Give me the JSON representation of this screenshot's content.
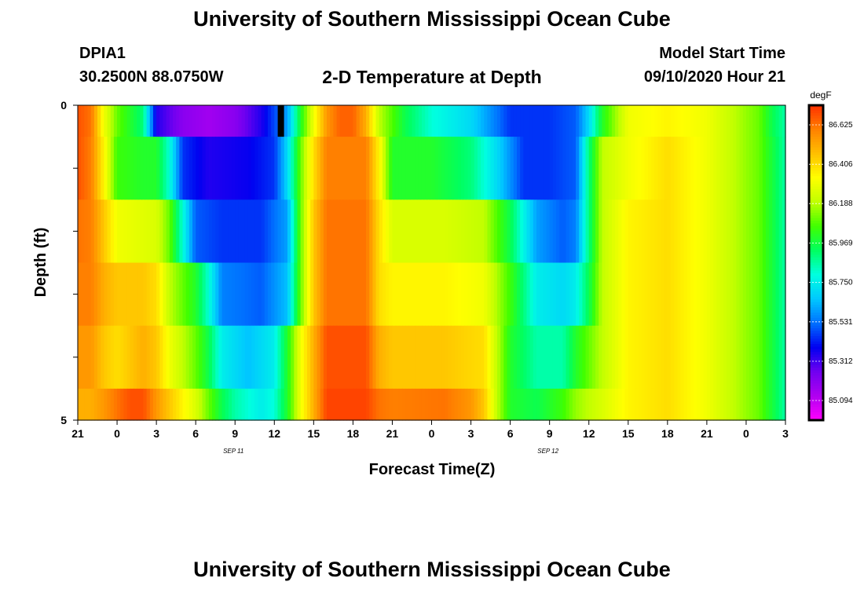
{
  "header": {
    "title": "University of Southern Mississippi Ocean Cube",
    "station_id": "DPIA1",
    "station_coords": "30.2500N 88.0750W",
    "plot_title": "2-D Temperature at Depth",
    "model_start_label": "Model Start Time",
    "model_start_value": "09/10/2020 Hour 21"
  },
  "footer": {
    "title": "University of Southern Mississippi Ocean Cube"
  },
  "chart_data": {
    "type": "heatmap",
    "title": "2-D Temperature at Depth",
    "xlabel": "Forecast Time(Z)",
    "ylabel": "Depth (ft)",
    "y_tick_labels": [
      "0",
      "5"
    ],
    "ylim": [
      0,
      5
    ],
    "x_tick_labels": [
      "21",
      "0",
      "3",
      "6",
      "9",
      "12",
      "15",
      "18",
      "21",
      "0",
      "3",
      "6",
      "9",
      "12",
      "15",
      "18",
      "21",
      "0",
      "3"
    ],
    "x_date_labels": [
      {
        "label": "SEP 11",
        "at_hour": 12
      },
      {
        "label": "SEP 12",
        "at_hour": 36
      }
    ],
    "x_hours_from_start": [
      0,
      54
    ],
    "units": "degF",
    "colorbar_ticks": [
      "86.625",
      "86.406",
      "86.188",
      "85.969",
      "85.750",
      "85.531",
      "85.312",
      "85.094"
    ],
    "colorbar_colors": [
      "#ff00ff",
      "#b000f0",
      "#7000f0",
      "#0000f0",
      "#0070ff",
      "#00c8ff",
      "#00ffe0",
      "#00ff60",
      "#40ff00",
      "#c0ff00",
      "#ffff00",
      "#ffc000",
      "#ff8000",
      "#ff3000"
    ],
    "vmin": 84.985,
    "vmax": 86.734,
    "grid": false,
    "depth_rows": [
      {
        "depth_band": "0.0-0.5",
        "anchors": [
          [
            0,
            86.68
          ],
          [
            1,
            86.62
          ],
          [
            2,
            86.3
          ],
          [
            3,
            86.1
          ],
          [
            4,
            86.0
          ],
          [
            5,
            85.9
          ],
          [
            6,
            85.35
          ],
          [
            8,
            85.2
          ],
          [
            10,
            85.15
          ],
          [
            12,
            85.2
          ],
          [
            14,
            85.35
          ],
          [
            16,
            85.6
          ],
          [
            17,
            86.0
          ],
          [
            18,
            86.3
          ],
          [
            19,
            86.55
          ],
          [
            20,
            86.65
          ],
          [
            21,
            86.65
          ],
          [
            22,
            86.5
          ],
          [
            23,
            86.2
          ],
          [
            25,
            85.95
          ],
          [
            27,
            85.8
          ],
          [
            30,
            85.7
          ],
          [
            33,
            85.45
          ],
          [
            36,
            85.45
          ],
          [
            38,
            85.5
          ],
          [
            39,
            85.7
          ],
          [
            40,
            86.0
          ],
          [
            42,
            86.3
          ],
          [
            45,
            86.35
          ],
          [
            48,
            86.3
          ],
          [
            50,
            86.2
          ],
          [
            52,
            86.1
          ],
          [
            53,
            85.95
          ],
          [
            54,
            85.85
          ]
        ]
      },
      {
        "depth_band": "0.5-1.5",
        "anchors": [
          [
            0,
            86.68
          ],
          [
            1,
            86.6
          ],
          [
            2,
            86.35
          ],
          [
            3,
            86.05
          ],
          [
            5,
            86.0
          ],
          [
            6,
            86.0
          ],
          [
            7,
            85.8
          ],
          [
            8,
            85.45
          ],
          [
            10,
            85.35
          ],
          [
            13,
            85.38
          ],
          [
            15,
            85.45
          ],
          [
            16,
            85.7
          ],
          [
            17,
            86.1
          ],
          [
            18,
            86.4
          ],
          [
            19,
            86.6
          ],
          [
            22,
            86.6
          ],
          [
            23,
            86.35
          ],
          [
            24,
            86.0
          ],
          [
            27,
            86.0
          ],
          [
            30,
            85.9
          ],
          [
            32,
            85.7
          ],
          [
            34,
            85.45
          ],
          [
            36,
            85.45
          ],
          [
            38,
            85.5
          ],
          [
            39,
            85.9
          ],
          [
            40,
            86.2
          ],
          [
            42,
            86.3
          ],
          [
            45,
            86.4
          ],
          [
            48,
            86.3
          ],
          [
            50,
            86.2
          ],
          [
            52,
            86.1
          ],
          [
            54,
            85.85
          ]
        ]
      },
      {
        "depth_band": "1.5-2.5",
        "anchors": [
          [
            0,
            86.62
          ],
          [
            1,
            86.6
          ],
          [
            2,
            86.45
          ],
          [
            3,
            86.3
          ],
          [
            6,
            86.25
          ],
          [
            7,
            86.1
          ],
          [
            8,
            85.8
          ],
          [
            9,
            85.5
          ],
          [
            11,
            85.45
          ],
          [
            14,
            85.45
          ],
          [
            16,
            85.6
          ],
          [
            17,
            86.1
          ],
          [
            18,
            86.45
          ],
          [
            19,
            86.62
          ],
          [
            22,
            86.62
          ],
          [
            23,
            86.4
          ],
          [
            24,
            86.25
          ],
          [
            28,
            86.25
          ],
          [
            31,
            86.2
          ],
          [
            33,
            85.95
          ],
          [
            35,
            85.6
          ],
          [
            37,
            85.5
          ],
          [
            38,
            85.55
          ],
          [
            39,
            85.9
          ],
          [
            40,
            86.2
          ],
          [
            42,
            86.35
          ],
          [
            45,
            86.4
          ],
          [
            48,
            86.3
          ],
          [
            50,
            86.2
          ],
          [
            52,
            86.1
          ],
          [
            54,
            85.85
          ]
        ]
      },
      {
        "depth_band": "2.5-3.5",
        "anchors": [
          [
            0,
            86.6
          ],
          [
            1,
            86.6
          ],
          [
            2,
            86.5
          ],
          [
            3,
            86.45
          ],
          [
            5,
            86.45
          ],
          [
            6,
            86.4
          ],
          [
            7,
            86.2
          ],
          [
            9,
            86.0
          ],
          [
            10,
            85.8
          ],
          [
            11,
            85.55
          ],
          [
            14,
            85.5
          ],
          [
            16,
            85.65
          ],
          [
            17,
            86.1
          ],
          [
            18,
            86.45
          ],
          [
            19,
            86.62
          ],
          [
            22,
            86.62
          ],
          [
            23,
            86.4
          ],
          [
            24,
            86.35
          ],
          [
            28,
            86.35
          ],
          [
            31,
            86.3
          ],
          [
            33,
            86.05
          ],
          [
            35,
            85.75
          ],
          [
            37,
            85.7
          ],
          [
            38,
            85.75
          ],
          [
            39,
            85.95
          ],
          [
            40,
            86.2
          ],
          [
            42,
            86.35
          ],
          [
            45,
            86.4
          ],
          [
            48,
            86.3
          ],
          [
            50,
            86.2
          ],
          [
            52,
            86.1
          ],
          [
            54,
            85.85
          ]
        ]
      },
      {
        "depth_band": "3.5-4.5",
        "anchors": [
          [
            0,
            86.55
          ],
          [
            1,
            86.55
          ],
          [
            2,
            86.45
          ],
          [
            3,
            86.4
          ],
          [
            5,
            86.5
          ],
          [
            6,
            86.45
          ],
          [
            7,
            86.3
          ],
          [
            9,
            86.1
          ],
          [
            10,
            85.95
          ],
          [
            11,
            85.75
          ],
          [
            13,
            85.65
          ],
          [
            15,
            85.75
          ],
          [
            16,
            86.0
          ],
          [
            17,
            86.3
          ],
          [
            18,
            86.5
          ],
          [
            19,
            86.68
          ],
          [
            22,
            86.68
          ],
          [
            23,
            86.5
          ],
          [
            24,
            86.45
          ],
          [
            28,
            86.45
          ],
          [
            31,
            86.4
          ],
          [
            32,
            86.2
          ],
          [
            33,
            86.0
          ],
          [
            35,
            85.85
          ],
          [
            37,
            85.85
          ],
          [
            38,
            86.0
          ],
          [
            40,
            86.2
          ],
          [
            42,
            86.35
          ],
          [
            45,
            86.4
          ],
          [
            48,
            86.3
          ],
          [
            50,
            86.2
          ],
          [
            52,
            86.1
          ],
          [
            54,
            85.85
          ]
        ]
      },
      {
        "depth_band": "4.5-5.0",
        "anchors": [
          [
            0,
            86.5
          ],
          [
            1,
            86.5
          ],
          [
            2,
            86.55
          ],
          [
            3,
            86.62
          ],
          [
            4,
            86.68
          ],
          [
            5,
            86.68
          ],
          [
            6,
            86.55
          ],
          [
            7,
            86.45
          ],
          [
            9,
            86.25
          ],
          [
            10,
            86.1
          ],
          [
            11,
            85.95
          ],
          [
            12,
            85.85
          ],
          [
            14,
            85.75
          ],
          [
            15,
            85.8
          ],
          [
            16,
            86.0
          ],
          [
            17,
            86.3
          ],
          [
            18,
            86.5
          ],
          [
            19,
            86.7
          ],
          [
            22,
            86.7
          ],
          [
            23,
            86.62
          ],
          [
            24,
            86.6
          ],
          [
            28,
            86.62
          ],
          [
            30,
            86.55
          ],
          [
            31,
            86.45
          ],
          [
            32,
            86.2
          ],
          [
            33,
            86.0
          ],
          [
            35,
            85.95
          ],
          [
            37,
            86.05
          ],
          [
            38,
            86.15
          ],
          [
            40,
            86.25
          ],
          [
            42,
            86.35
          ],
          [
            45,
            86.4
          ],
          [
            48,
            86.3
          ],
          [
            50,
            86.2
          ],
          [
            52,
            86.1
          ],
          [
            54,
            85.85
          ]
        ]
      }
    ],
    "markers": [
      {
        "x_hours": 15.5,
        "depth_band": "0.0-0.5",
        "color": "#000000"
      }
    ]
  }
}
